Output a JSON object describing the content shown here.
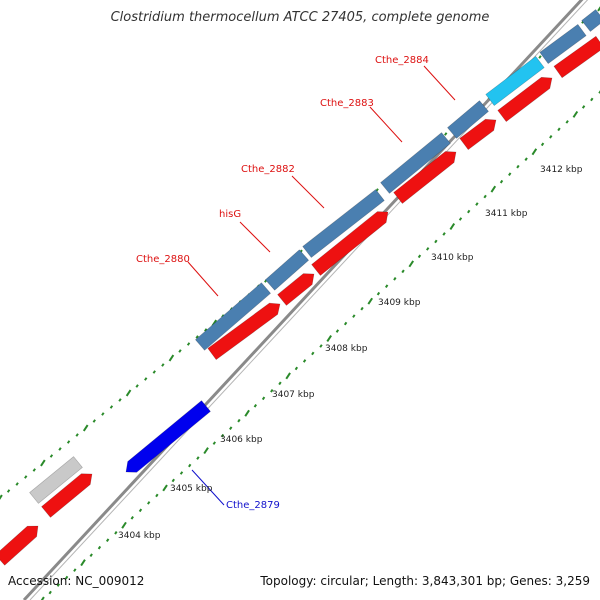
{
  "title": "Clostridium thermocellum ATCC 27405, complete genome",
  "footer": {
    "accession": "Accession: NC_009012",
    "summary": "Topology: circular; Length: 3,843,301 bp; Genes: 3,259"
  },
  "colors": {
    "backbone": "#8a8a8a",
    "outer_gene": "#4a7fb0",
    "outer_gene_highlight": "#22c3f0",
    "outer_gene_other": "#c9c9c9",
    "inner_gene": "#ee1111",
    "selected_gene": "#0000ee",
    "tick": "#2a8a2a",
    "gene_label": "#dd1111",
    "selected_label": "#1111cc",
    "kbp_label": "#222222"
  },
  "ticks": {
    "kbp_labels": [
      "3404 kbp",
      "3405 kbp",
      "3406 kbp",
      "3407 kbp",
      "3408 kbp",
      "3409 kbp",
      "3410 kbp",
      "3411 kbp",
      "3412 kbp"
    ]
  },
  "gene_labels": [
    {
      "name": "Cthe_2880",
      "color_key": "gene_label"
    },
    {
      "name": "hisG",
      "color_key": "gene_label"
    },
    {
      "name": "Cthe_2882",
      "color_key": "gene_label"
    },
    {
      "name": "Cthe_2883",
      "color_key": "gene_label"
    },
    {
      "name": "Cthe_2884",
      "color_key": "gene_label"
    },
    {
      "name": "Cthe_2879",
      "color_key": "selected_label"
    }
  ],
  "outer_genes": [
    {
      "color_key": "outer_gene_other"
    },
    {
      "color_key": "outer_gene"
    },
    {
      "color_key": "outer_gene"
    },
    {
      "color_key": "outer_gene"
    },
    {
      "color_key": "outer_gene"
    },
    {
      "color_key": "outer_gene"
    },
    {
      "color_key": "outer_gene_highlight"
    },
    {
      "color_key": "outer_gene"
    },
    {
      "color_key": "outer_gene"
    }
  ],
  "inner_genes": [
    {
      "color_key": "inner_gene"
    },
    {
      "color_key": "inner_gene"
    },
    {
      "color_key": "selected_gene"
    },
    {
      "color_key": "inner_gene"
    },
    {
      "color_key": "inner_gene"
    },
    {
      "color_key": "inner_gene"
    },
    {
      "color_key": "inner_gene"
    },
    {
      "color_key": "inner_gene"
    },
    {
      "color_key": "inner_gene"
    }
  ]
}
